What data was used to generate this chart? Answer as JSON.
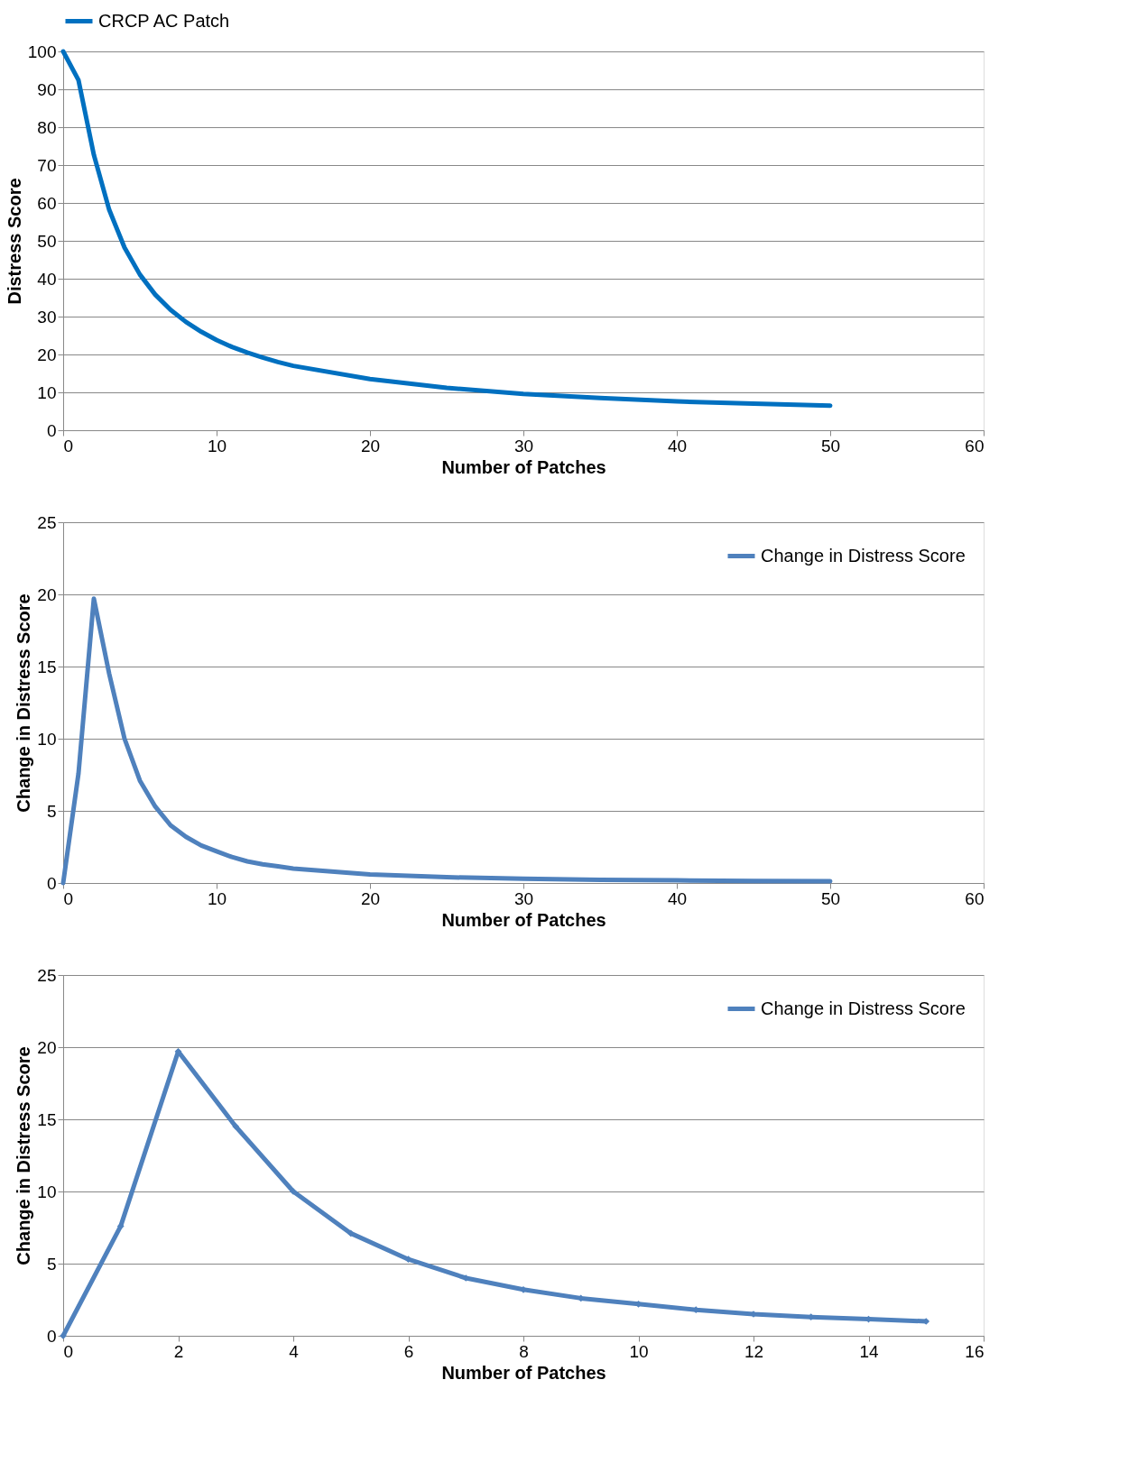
{
  "chart_data": [
    {
      "type": "line",
      "xlabel": "Number of Patches",
      "ylabel": "Distress Score",
      "x": [
        0,
        1,
        2,
        3,
        4,
        5,
        6,
        7,
        8,
        9,
        10,
        11,
        12,
        13,
        14,
        15,
        20,
        25,
        30,
        35,
        40,
        45,
        50
      ],
      "series": [
        {
          "name": "CRCP AC Patch",
          "color": "#0070c0",
          "values": [
            100,
            92.4,
            72.7,
            58.2,
            48.2,
            41.1,
            35.8,
            31.8,
            28.6,
            26.0,
            23.8,
            22.0,
            20.5,
            19.2,
            18.0,
            17.0,
            13.5,
            11.2,
            9.6,
            8.5,
            7.6,
            7.0,
            6.5
          ]
        }
      ],
      "xlim": [
        0,
        60
      ],
      "xticks": [
        0,
        10,
        20,
        30,
        40,
        50,
        60
      ],
      "ylim": [
        0,
        100
      ],
      "yticks": [
        0,
        10,
        20,
        30,
        40,
        50,
        60,
        70,
        80,
        90,
        100
      ],
      "grid": "y",
      "legend": "top",
      "marker": "none",
      "line_style": "solid"
    },
    {
      "type": "line",
      "xlabel": "Number of Patches",
      "ylabel": "Change in Distress Score",
      "x": [
        0,
        1,
        2,
        3,
        4,
        5,
        6,
        7,
        8,
        9,
        10,
        11,
        12,
        13,
        14,
        15,
        20,
        25,
        30,
        35,
        40,
        45,
        50
      ],
      "series": [
        {
          "name": "Change in Distress Score",
          "color": "#4f81bd",
          "values": [
            0,
            7.6,
            19.7,
            14.5,
            10.0,
            7.1,
            5.3,
            4.0,
            3.2,
            2.6,
            2.2,
            1.8,
            1.5,
            1.3,
            1.15,
            1.0,
            0.6,
            0.4,
            0.3,
            0.22,
            0.18,
            0.14,
            0.12
          ]
        }
      ],
      "xlim": [
        0,
        60
      ],
      "xticks": [
        0,
        10,
        20,
        30,
        40,
        50,
        60
      ],
      "ylim": [
        0,
        25
      ],
      "yticks": [
        0,
        5,
        10,
        15,
        20,
        25
      ],
      "grid": "y",
      "legend": "top right",
      "marker": "none",
      "line_style": "solid"
    },
    {
      "type": "line",
      "xlabel": "Number of Patches",
      "ylabel": "Change in Distress Score",
      "x": [
        0,
        1,
        2,
        3,
        4,
        5,
        6,
        7,
        8,
        9,
        10,
        11,
        12,
        13,
        14,
        15
      ],
      "series": [
        {
          "name": "Change in Distress Score",
          "color": "#4f81bd",
          "values": [
            0,
            7.6,
            19.7,
            14.5,
            10.0,
            7.1,
            5.3,
            4.0,
            3.2,
            2.6,
            2.2,
            1.8,
            1.5,
            1.3,
            1.15,
            1.0
          ]
        }
      ],
      "xlim": [
        0,
        16
      ],
      "xticks": [
        0,
        2,
        4,
        6,
        8,
        10,
        12,
        14,
        16
      ],
      "ylim": [
        0,
        25
      ],
      "yticks": [
        0,
        5,
        10,
        15,
        20,
        25
      ],
      "grid": "y",
      "legend": "top right",
      "marker": "diamond",
      "line_style": "solid"
    }
  ]
}
